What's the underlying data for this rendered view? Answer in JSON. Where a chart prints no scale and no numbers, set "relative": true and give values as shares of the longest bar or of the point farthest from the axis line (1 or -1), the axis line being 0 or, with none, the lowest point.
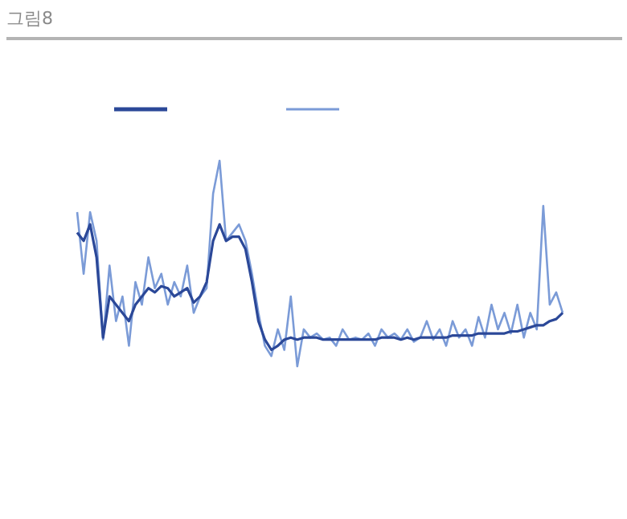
{
  "chart_data": {
    "type": "line",
    "title": "그림8",
    "relative": true,
    "marker": "none",
    "line_style": "solid",
    "categories": [
      null,
      null,
      null,
      null,
      null,
      null,
      null,
      null,
      null,
      null,
      null,
      null,
      null,
      null,
      null,
      null,
      null,
      null,
      null,
      null,
      null,
      null,
      null,
      null,
      null,
      null,
      null,
      null,
      null,
      null,
      null,
      null,
      null,
      null,
      null,
      null,
      null,
      null,
      null,
      null,
      null,
      null,
      null,
      null,
      null,
      null,
      null,
      null,
      null,
      null,
      null,
      null,
      null,
      null,
      null,
      null,
      null,
      null,
      null,
      null,
      null,
      null,
      null,
      null,
      null,
      null,
      null,
      null,
      null,
      null,
      null,
      null,
      null,
      null,
      null,
      null
    ],
    "series": [
      {
        "color": "#7b9bd7",
        "values": [
          0.75,
          0.45,
          0.75,
          0.61,
          0.13,
          0.49,
          0.22,
          0.34,
          0.1,
          0.41,
          0.3,
          0.53,
          0.38,
          0.45,
          0.3,
          0.41,
          0.34,
          0.49,
          0.26,
          0.34,
          0.38,
          0.84,
          1,
          0.61,
          0.65,
          0.69,
          0.61,
          0.45,
          0.26,
          0.1,
          0.05,
          0.18,
          0.08,
          0.34,
          0,
          0.18,
          0.14,
          0.16,
          0.13,
          0.14,
          0.1,
          0.18,
          0.13,
          0.14,
          0.13,
          0.16,
          0.1,
          0.18,
          0.14,
          0.16,
          0.13,
          0.18,
          0.12,
          0.14,
          0.22,
          0.13,
          0.18,
          0.1,
          0.22,
          0.14,
          0.18,
          0.1,
          0.24,
          0.14,
          0.3,
          0.18,
          0.26,
          0.16,
          0.3,
          0.14,
          0.26,
          0.18,
          0.78,
          0.3,
          0.36,
          0.26
        ]
      },
      {
        "color": "#2b4898",
        "values": [
          0.65,
          0.61,
          0.69,
          0.53,
          0.14,
          0.34,
          0.3,
          0.26,
          0.22,
          0.3,
          0.34,
          0.38,
          0.36,
          0.39,
          0.38,
          0.34,
          0.36,
          0.38,
          0.31,
          0.34,
          0.41,
          0.61,
          0.69,
          0.61,
          0.63,
          0.63,
          0.57,
          0.41,
          0.22,
          0.13,
          0.08,
          0.1,
          0.13,
          0.14,
          0.13,
          0.14,
          0.14,
          0.14,
          0.13,
          0.13,
          0.13,
          0.13,
          0.13,
          0.13,
          0.13,
          0.13,
          0.13,
          0.14,
          0.14,
          0.14,
          0.13,
          0.14,
          0.13,
          0.14,
          0.14,
          0.14,
          0.14,
          0.14,
          0.15,
          0.15,
          0.15,
          0.15,
          0.16,
          0.16,
          0.16,
          0.16,
          0.16,
          0.17,
          0.17,
          0.18,
          0.19,
          0.2,
          0.2,
          0.22,
          0.23,
          0.26
        ]
      }
    ]
  }
}
